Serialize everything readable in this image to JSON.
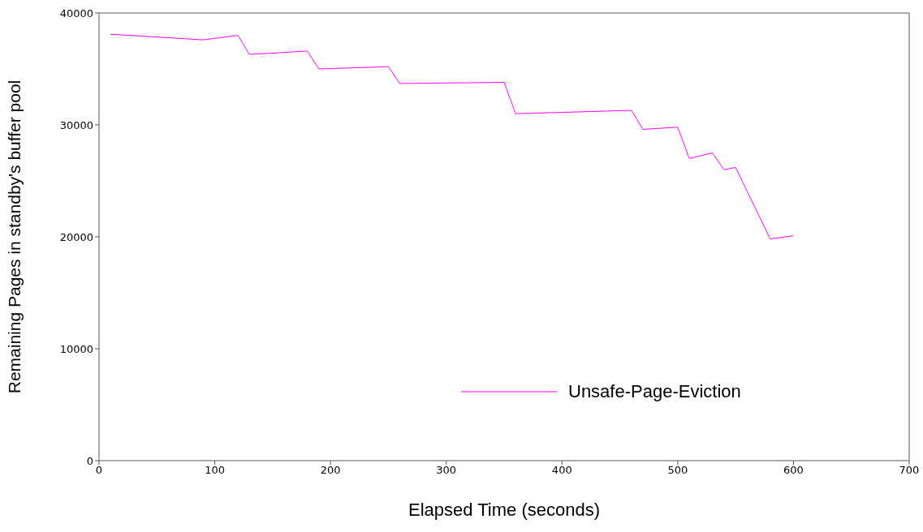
{
  "chart_data": {
    "type": "line",
    "xlabel": "Elapsed Time (seconds)",
    "ylabel": "Remaining Pages in standby's buffer pool",
    "x": [
      10,
      90,
      120,
      130,
      180,
      190,
      250,
      260,
      350,
      360,
      460,
      470,
      500,
      510,
      530,
      540,
      550,
      580,
      600
    ],
    "series": [
      {
        "name": "Unsafe-Page-Eviction",
        "color": "#ff00ff",
        "values": [
          38100,
          37600,
          38000,
          36300,
          36600,
          35000,
          35200,
          33700,
          33800,
          31000,
          31300,
          29600,
          29800,
          27000,
          27500,
          26000,
          26200,
          19800,
          20100
        ]
      }
    ],
    "xlim": [
      0,
      700
    ],
    "xticks": [
      0,
      100,
      200,
      300,
      400,
      500,
      600,
      700
    ],
    "ylim": [
      0,
      40000
    ],
    "yticks": [
      0,
      10000,
      20000,
      30000,
      40000
    ],
    "grid": false,
    "legend": "bottom right",
    "marker": "none",
    "line_style": "solid"
  }
}
